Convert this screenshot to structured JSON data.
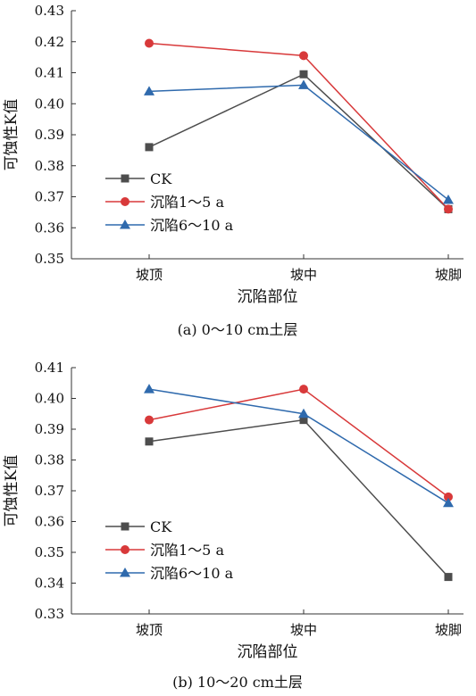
{
  "colors": {
    "CK": "#4d4d4d",
    "subsidence_1_5a": "#d8393a",
    "subsidence_6_10a": "#2f6aad"
  },
  "chart_data": [
    {
      "type": "line",
      "caption": "(a)  0～10 cm土层",
      "xlabel": "沉陷部位",
      "ylabel": "可蚀性K值",
      "categories": [
        "坡顶",
        "坡中",
        "坡脚"
      ],
      "ylim": [
        0.35,
        0.43
      ],
      "yticks": [
        "0.35",
        "0.36",
        "0.37",
        "0.38",
        "0.39",
        "0.40",
        "0.41",
        "0.42",
        "0.43"
      ],
      "legend_position": "bottom-left",
      "grid": false,
      "series": [
        {
          "name": "CK",
          "marker": "square",
          "color": "#4d4d4d",
          "values": [
            0.386,
            0.4095,
            0.366
          ]
        },
        {
          "name": "沉陷1～5 a",
          "marker": "circle",
          "color": "#d8393a",
          "values": [
            0.4195,
            0.4155,
            0.366
          ]
        },
        {
          "name": "沉陷6～10 a",
          "marker": "triangle",
          "color": "#2f6aad",
          "values": [
            0.404,
            0.406,
            0.369
          ]
        }
      ]
    },
    {
      "type": "line",
      "caption": "(b)  10～20 cm土层",
      "xlabel": "沉陷部位",
      "ylabel": "可蚀性K值",
      "categories": [
        "坡顶",
        "坡中",
        "坡脚"
      ],
      "ylim": [
        0.33,
        0.41
      ],
      "yticks": [
        "0.33",
        "0.34",
        "0.35",
        "0.36",
        "0.37",
        "0.38",
        "0.39",
        "0.40",
        "0.41"
      ],
      "legend_position": "bottom-left",
      "grid": false,
      "series": [
        {
          "name": "CK",
          "marker": "square",
          "color": "#4d4d4d",
          "values": [
            0.386,
            0.393,
            0.342
          ]
        },
        {
          "name": "沉陷1～5 a",
          "marker": "circle",
          "color": "#d8393a",
          "values": [
            0.393,
            0.403,
            0.368
          ]
        },
        {
          "name": "沉陷6～10 a",
          "marker": "triangle",
          "color": "#2f6aad",
          "values": [
            0.403,
            0.395,
            0.366
          ]
        }
      ]
    }
  ]
}
